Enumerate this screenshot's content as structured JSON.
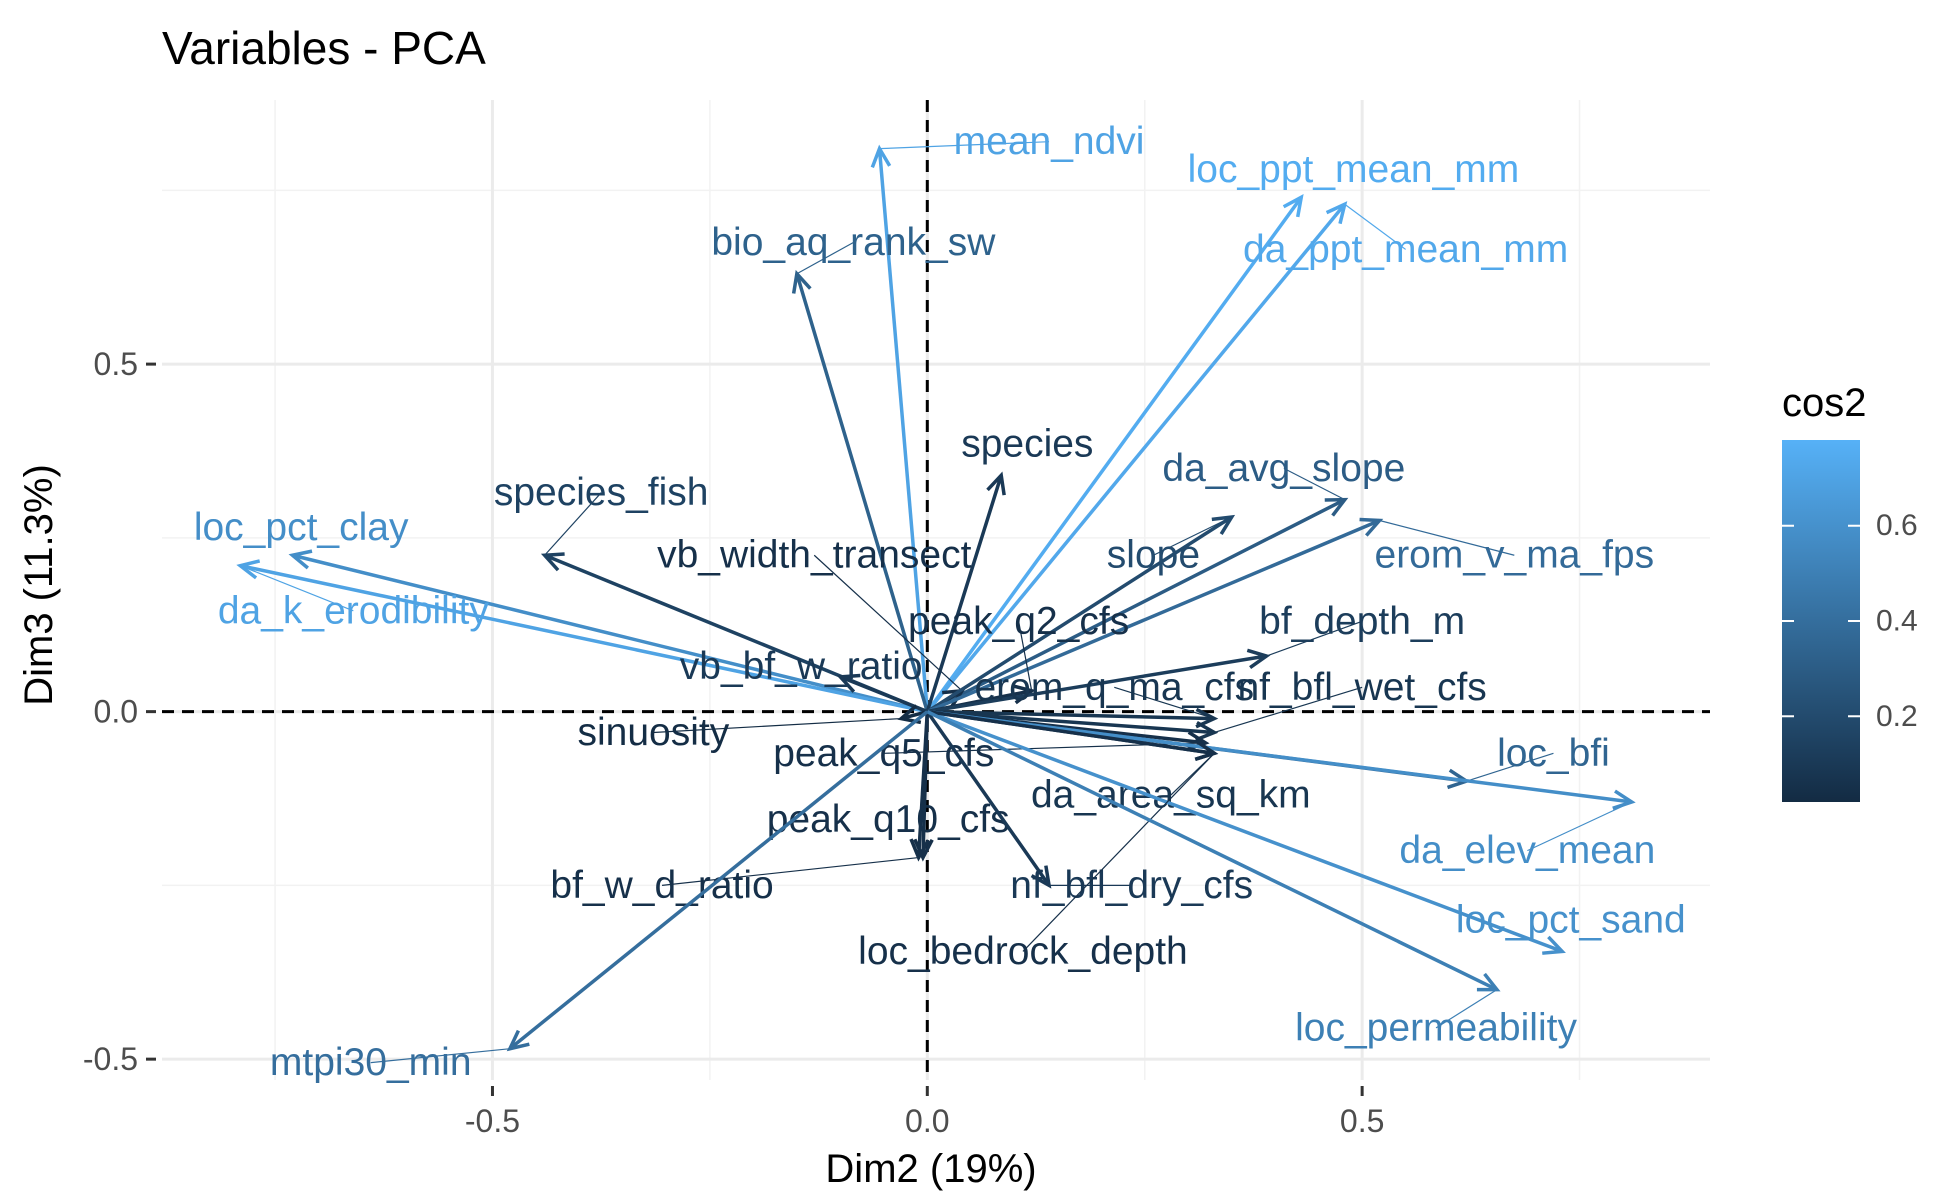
{
  "chart_data": {
    "type": "scatter",
    "subtype": "pca-variable-loadings",
    "title": "Variables - PCA",
    "xlabel": "Dim2 (19%)",
    "ylabel": "Dim3 (11.3%)",
    "xlim": [
      -0.88,
      0.9
    ],
    "ylim": [
      -0.53,
      0.88
    ],
    "x_ticks": [
      -0.5,
      0.0,
      0.5
    ],
    "x_tick_labels": [
      "-0.5",
      "0.0",
      "0.5"
    ],
    "y_ticks": [
      -0.5,
      0.0,
      0.5
    ],
    "y_tick_labels": [
      "-0.5",
      "0.0",
      "0.5"
    ],
    "grid": true,
    "reference_lines": [
      0,
      0
    ],
    "color_scale": {
      "low": "#132B43",
      "high": "#56B1F7"
    },
    "legend": {
      "title": "cos2",
      "position": "right",
      "ticks": [
        0.2,
        0.4,
        0.6
      ],
      "tick_labels": [
        "0.2",
        "0.4",
        "0.6"
      ],
      "range": [
        0.02,
        0.78
      ]
    },
    "variables": [
      {
        "name": "mean_ndvi",
        "x": -0.055,
        "y": 0.81,
        "cos2": 0.7,
        "lx": 0.14,
        "ly": 0.82
      },
      {
        "name": "loc_ppt_mean_mm",
        "x": 0.43,
        "y": 0.74,
        "cos2": 0.75,
        "lx": 0.49,
        "ly": 0.78
      },
      {
        "name": "da_ppt_mean_mm",
        "x": 0.48,
        "y": 0.73,
        "cos2": 0.73,
        "lx": 0.55,
        "ly": 0.665
      },
      {
        "name": "bio_aq_rank_sw",
        "x": -0.15,
        "y": 0.63,
        "cos2": 0.33,
        "lx": -0.085,
        "ly": 0.675
      },
      {
        "name": "species",
        "x": 0.085,
        "y": 0.34,
        "cos2": 0.1,
        "lx": 0.115,
        "ly": 0.385
      },
      {
        "name": "da_avg_slope",
        "x": 0.48,
        "y": 0.305,
        "cos2": 0.3,
        "lx": 0.41,
        "ly": 0.35
      },
      {
        "name": "species_fish",
        "x": -0.44,
        "y": 0.225,
        "cos2": 0.15,
        "lx": -0.375,
        "ly": 0.315
      },
      {
        "name": "loc_pct_clay",
        "x": -0.73,
        "y": 0.225,
        "cos2": 0.58,
        "lx": -0.72,
        "ly": 0.265
      },
      {
        "name": "da_k_erodibility",
        "x": -0.79,
        "y": 0.21,
        "cos2": 0.7,
        "lx": -0.66,
        "ly": 0.145
      },
      {
        "name": "vb_width_transect",
        "x": 0.04,
        "y": 0.03,
        "cos2": 0.05,
        "lx": -0.13,
        "ly": 0.225
      },
      {
        "name": "slope",
        "x": 0.35,
        "y": 0.28,
        "cos2": 0.2,
        "lx": 0.26,
        "ly": 0.225
      },
      {
        "name": "erom_v_ma_fps",
        "x": 0.52,
        "y": 0.275,
        "cos2": 0.38,
        "lx": 0.675,
        "ly": 0.225
      },
      {
        "name": "peak_q2_cfs",
        "x": 0.12,
        "y": 0.03,
        "cos2": 0.05,
        "lx": 0.105,
        "ly": 0.13
      },
      {
        "name": "bf_depth_m",
        "x": 0.39,
        "y": 0.08,
        "cos2": 0.12,
        "lx": 0.5,
        "ly": 0.13
      },
      {
        "name": "vb_bf_w_ratio",
        "x": -0.1,
        "y": 0.05,
        "cos2": 0.1,
        "lx": -0.145,
        "ly": 0.065
      },
      {
        "name": "erom_q_ma_cfs",
        "x": 0.33,
        "y": -0.01,
        "cos2": 0.08,
        "lx": 0.215,
        "ly": 0.035
      },
      {
        "name": "nf_bfl_wet_cfs",
        "x": 0.33,
        "y": -0.03,
        "cos2": 0.08,
        "lx": 0.5,
        "ly": 0.035
      },
      {
        "name": "sinuosity",
        "x": -0.03,
        "y": -0.01,
        "cos2": 0.03,
        "lx": -0.315,
        "ly": -0.03
      },
      {
        "name": "peak_q5_cfs",
        "x": 0.32,
        "y": -0.045,
        "cos2": 0.05,
        "lx": -0.05,
        "ly": -0.06
      },
      {
        "name": "loc_bfi",
        "x": 0.62,
        "y": -0.1,
        "cos2": 0.35,
        "lx": 0.72,
        "ly": -0.06
      },
      {
        "name": "da_area_sq_km",
        "x": 0.33,
        "y": -0.06,
        "cos2": 0.08,
        "lx": 0.28,
        "ly": -0.12
      },
      {
        "name": "loc_pct_sand",
        "x": 0.73,
        "y": -0.345,
        "cos2": 0.6,
        "lx": 0.74,
        "ly": -0.3
      },
      {
        "name": "da_elev_mean",
        "x": 0.81,
        "y": -0.13,
        "cos2": 0.58,
        "lx": 0.69,
        "ly": -0.2
      },
      {
        "name": "peak_q10_cfs",
        "x": -0.005,
        "y": -0.21,
        "cos2": 0.05,
        "lx": -0.045,
        "ly": -0.155
      },
      {
        "name": "nf_bfl_dry_cfs",
        "x": 0.14,
        "y": -0.25,
        "cos2": 0.1,
        "lx": 0.235,
        "ly": -0.25
      },
      {
        "name": "bf_w_d_ratio",
        "x": -0.01,
        "y": -0.21,
        "cos2": 0.05,
        "lx": -0.305,
        "ly": -0.25
      },
      {
        "name": "loc_bedrock_depth",
        "x": 0.33,
        "y": -0.06,
        "cos2": 0.05,
        "lx": 0.11,
        "ly": -0.345
      },
      {
        "name": "loc_permeability",
        "x": 0.655,
        "y": -0.4,
        "cos2": 0.5,
        "lx": 0.585,
        "ly": -0.455
      },
      {
        "name": "mtpi30_min",
        "x": -0.48,
        "y": -0.485,
        "cos2": 0.4,
        "lx": -0.64,
        "ly": -0.505
      }
    ]
  }
}
